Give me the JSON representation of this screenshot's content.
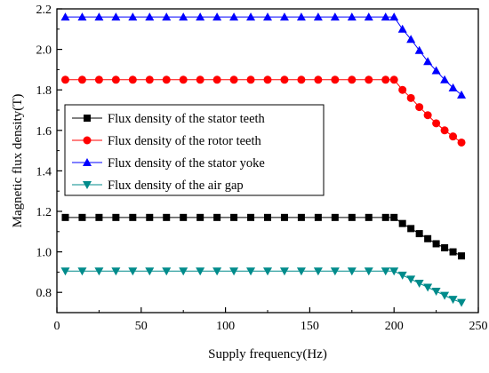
{
  "chart_data": {
    "type": "line",
    "xlabel": "Supply frequency(Hz)",
    "ylabel": "Magnetic flux density(T)",
    "xlim": [
      0,
      250
    ],
    "ylim": [
      0.7,
      2.2
    ],
    "xticks": [
      0,
      50,
      100,
      150,
      200,
      250
    ],
    "yticks": [
      0.8,
      1.0,
      1.2,
      1.4,
      1.6,
      1.8,
      2.0,
      2.2
    ],
    "y_tick_format": 1,
    "grid": false,
    "legend_position": "center-left",
    "x": [
      5,
      15,
      25,
      35,
      45,
      55,
      65,
      75,
      85,
      95,
      105,
      115,
      125,
      135,
      145,
      155,
      165,
      175,
      185,
      195,
      200,
      205,
      210,
      215,
      220,
      225,
      230,
      235,
      240
    ],
    "series": [
      {
        "name": "Flux density of the stator teeth",
        "color": "#000000",
        "marker": "square",
        "values": [
          1.17,
          1.17,
          1.17,
          1.17,
          1.17,
          1.17,
          1.17,
          1.17,
          1.17,
          1.17,
          1.17,
          1.17,
          1.17,
          1.17,
          1.17,
          1.17,
          1.17,
          1.17,
          1.17,
          1.17,
          1.17,
          1.14,
          1.115,
          1.09,
          1.065,
          1.04,
          1.02,
          1.0,
          0.98
        ]
      },
      {
        "name": "Flux density of the rotor teeth",
        "color": "#ff0000",
        "marker": "circle",
        "values": [
          1.85,
          1.85,
          1.85,
          1.85,
          1.85,
          1.85,
          1.85,
          1.85,
          1.85,
          1.85,
          1.85,
          1.85,
          1.85,
          1.85,
          1.85,
          1.85,
          1.85,
          1.85,
          1.85,
          1.85,
          1.85,
          1.8,
          1.76,
          1.715,
          1.675,
          1.635,
          1.6,
          1.57,
          1.54
        ]
      },
      {
        "name": "Flux density of the stator yoke",
        "color": "#0000ff",
        "marker": "triangle-up",
        "values": [
          2.16,
          2.16,
          2.16,
          2.16,
          2.16,
          2.16,
          2.16,
          2.16,
          2.16,
          2.16,
          2.16,
          2.16,
          2.16,
          2.16,
          2.16,
          2.16,
          2.16,
          2.16,
          2.16,
          2.16,
          2.16,
          2.1,
          2.05,
          1.995,
          1.94,
          1.895,
          1.85,
          1.81,
          1.775
        ]
      },
      {
        "name": "Flux density of the air gap",
        "color": "#008b8b",
        "marker": "triangle-down",
        "values": [
          0.905,
          0.905,
          0.905,
          0.905,
          0.905,
          0.905,
          0.905,
          0.905,
          0.905,
          0.905,
          0.905,
          0.905,
          0.905,
          0.905,
          0.905,
          0.905,
          0.905,
          0.905,
          0.905,
          0.905,
          0.905,
          0.885,
          0.865,
          0.845,
          0.825,
          0.805,
          0.785,
          0.765,
          0.75
        ]
      }
    ]
  }
}
